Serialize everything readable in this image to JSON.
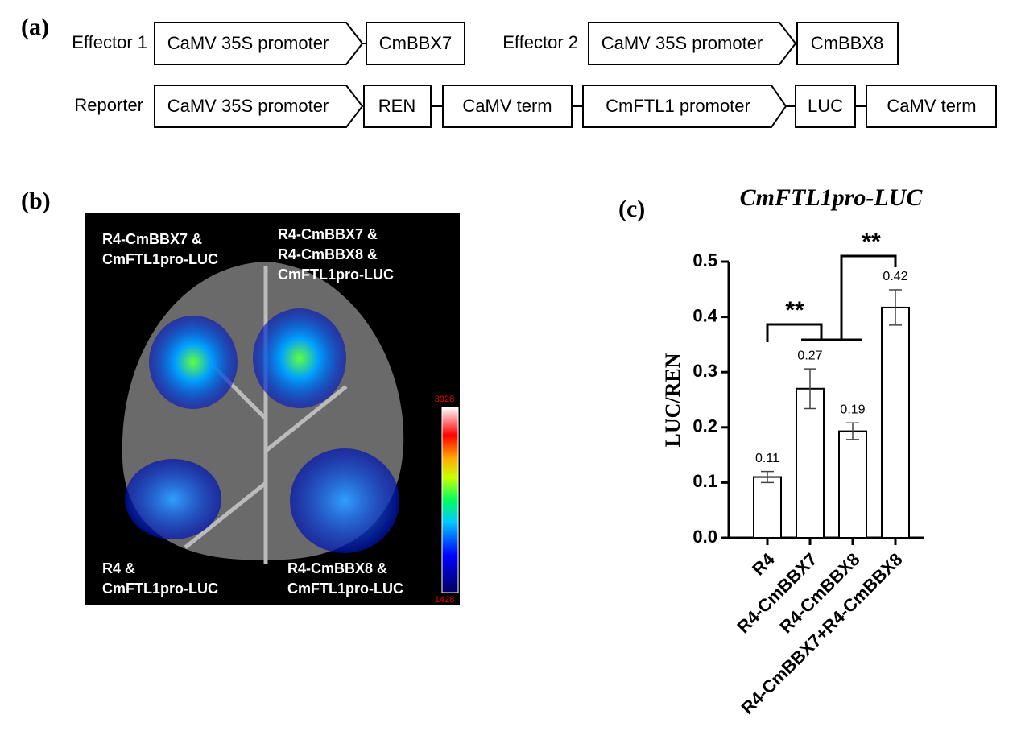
{
  "panel_a": {
    "label": "(a)",
    "effector1": {
      "name": "Effector 1",
      "promoter": "CaMV 35S promoter",
      "gene": "CmBBX7"
    },
    "effector2": {
      "name": "Effector 2",
      "promoter": "CaMV 35S promoter",
      "gene": "CmBBX8"
    },
    "reporter": {
      "name": "Reporter",
      "parts": [
        "CaMV 35S promoter",
        "REN",
        "CaMV term",
        "CmFTL1 promoter",
        "LUC",
        "CaMV term"
      ]
    }
  },
  "panel_b": {
    "label": "(b)",
    "samples": [
      {
        "lines": [
          "R4-CmBBX7 &",
          "CmFTL1pro-LUC"
        ]
      },
      {
        "lines": [
          "R4-CmBBX7 &",
          "R4-CmBBX8 &",
          "CmFTL1pro-LUC"
        ]
      },
      {
        "lines": [
          "R4 &",
          "CmFTL1pro-LUC"
        ]
      },
      {
        "lines": [
          "R4-CmBBX8 &",
          "CmFTL1pro-LUC"
        ]
      }
    ],
    "colorbar_max": "3928",
    "colorbar_min": "1428"
  },
  "chart_data": {
    "type": "bar",
    "panel_label": "(c)",
    "title": "CmFTL1pro-LUC",
    "y_label": "LUC/REN",
    "categories": [
      "R4",
      "R4-CmBBX7",
      "R4-CmBBX8",
      "R4-CmBBX7+R4-CmBBX8"
    ],
    "values": [
      0.11,
      0.27,
      0.193,
      0.417
    ],
    "value_labels": [
      "0.11",
      "0.27",
      "0.19",
      "0.42"
    ],
    "errors": [
      0.01,
      0.036,
      0.015,
      0.032
    ],
    "color": "#ffffff",
    "ylim": [
      0,
      0.5
    ],
    "yticks": [
      {
        "value": 0,
        "label": "0.0"
      },
      0.1,
      0.2,
      0.3,
      0.4,
      0.5
    ],
    "annotations": [
      "**",
      "**"
    ]
  }
}
